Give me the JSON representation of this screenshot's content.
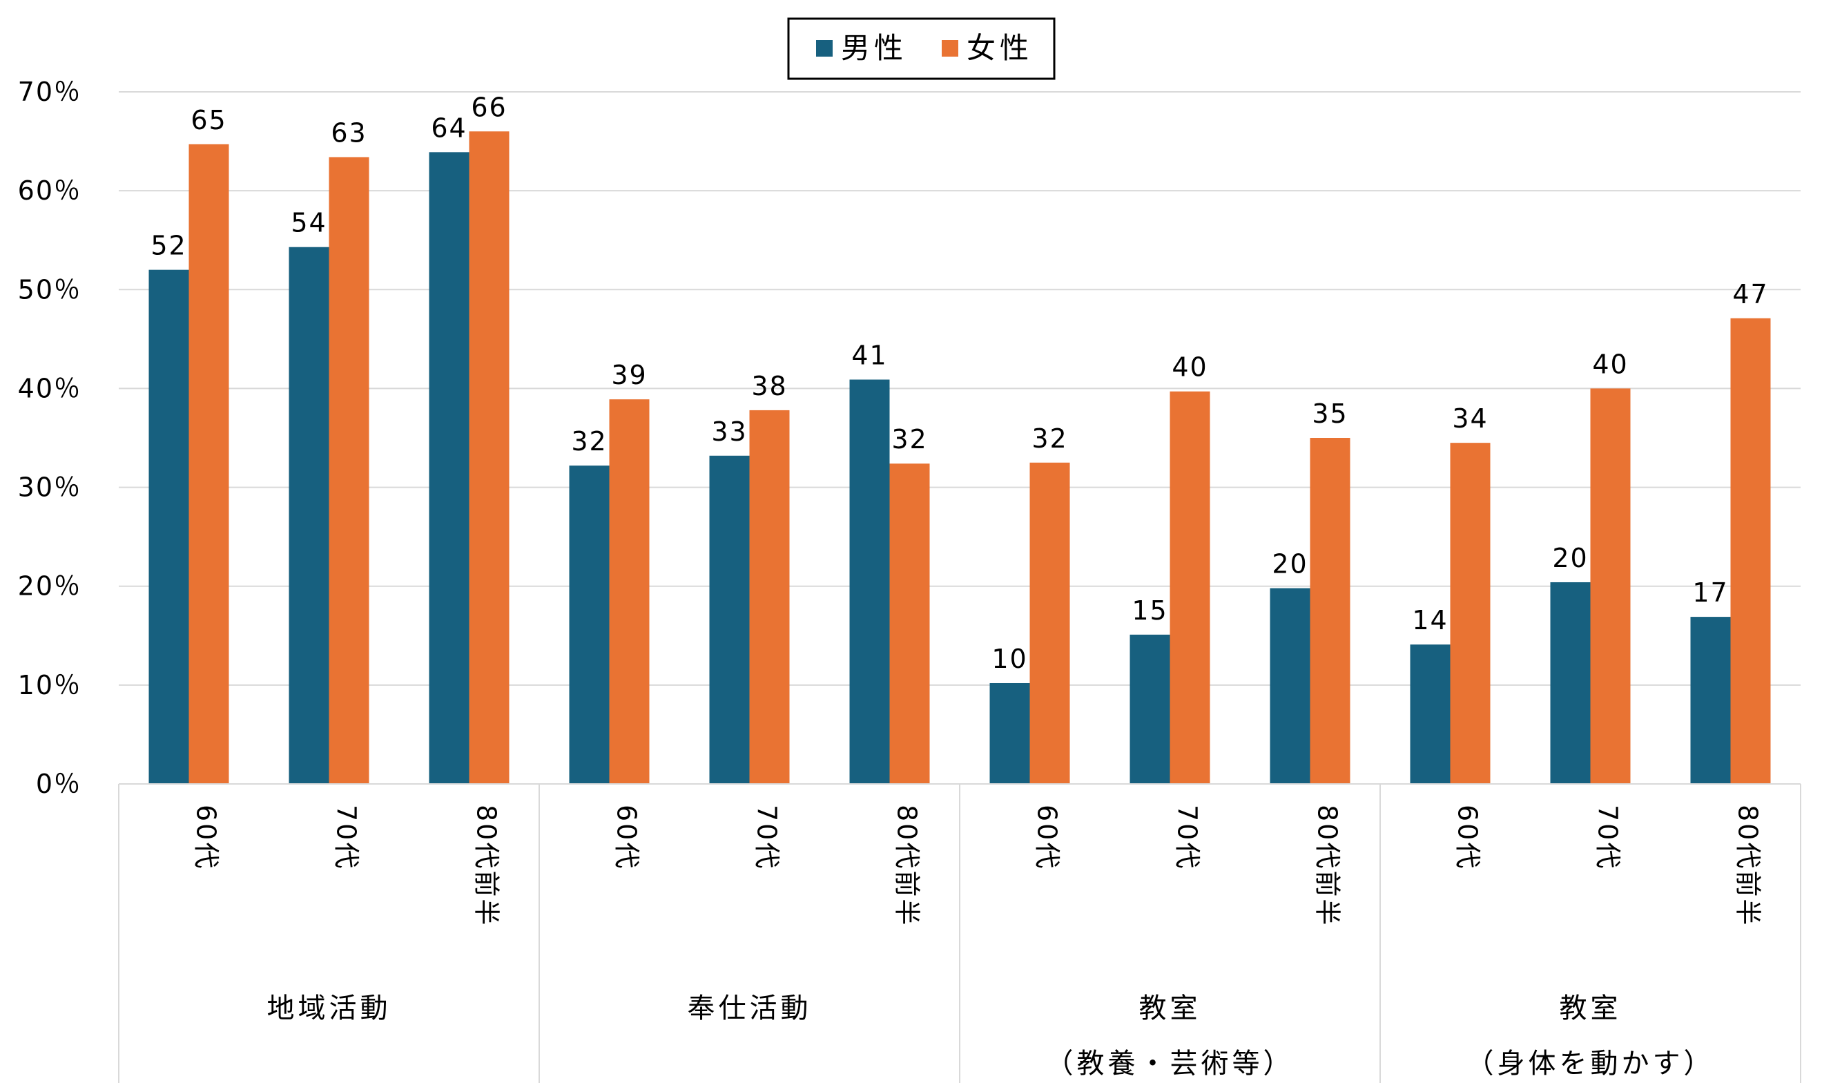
{
  "chart_data": {
    "type": "bar",
    "ylim": [
      0,
      70
    ],
    "yticks": [
      0,
      10,
      20,
      30,
      40,
      50,
      60,
      70
    ],
    "ytick_suffix": "％",
    "grid": true,
    "legend_position": "top-center",
    "colors": {
      "male": "#17607f",
      "female": "#e97333"
    },
    "groups": [
      {
        "label": [
          "地域活動"
        ],
        "categories": [
          "60代",
          "70代",
          "80代前半"
        ]
      },
      {
        "label": [
          "奉仕活動"
        ],
        "categories": [
          "60代",
          "70代",
          "80代前半"
        ]
      },
      {
        "label": [
          "教室",
          "（教養・芸術等）"
        ],
        "categories": [
          "60代",
          "70代",
          "80代前半"
        ]
      },
      {
        "label": [
          "教室",
          "（身体を動かす）"
        ],
        "categories": [
          "60代",
          "70代",
          "80代前半"
        ]
      }
    ],
    "series": [
      {
        "name": "男性",
        "values": [
          52,
          54.3,
          63.9,
          32.2,
          33.2,
          40.9,
          10.2,
          15.1,
          19.8,
          14.1,
          20.4,
          16.9
        ],
        "labels": [
          "52",
          "54",
          "64",
          "32",
          "33",
          "41",
          "10",
          "15",
          "20",
          "14",
          "20",
          "17"
        ]
      },
      {
        "name": "女性",
        "values": [
          64.7,
          63.4,
          66,
          38.9,
          37.8,
          32.4,
          32.5,
          39.7,
          35,
          34.5,
          40,
          47.1
        ],
        "labels": [
          "65",
          "63",
          "66",
          "39",
          "38",
          "32",
          "32",
          "40",
          "35",
          "34",
          "40",
          "47"
        ]
      }
    ]
  }
}
